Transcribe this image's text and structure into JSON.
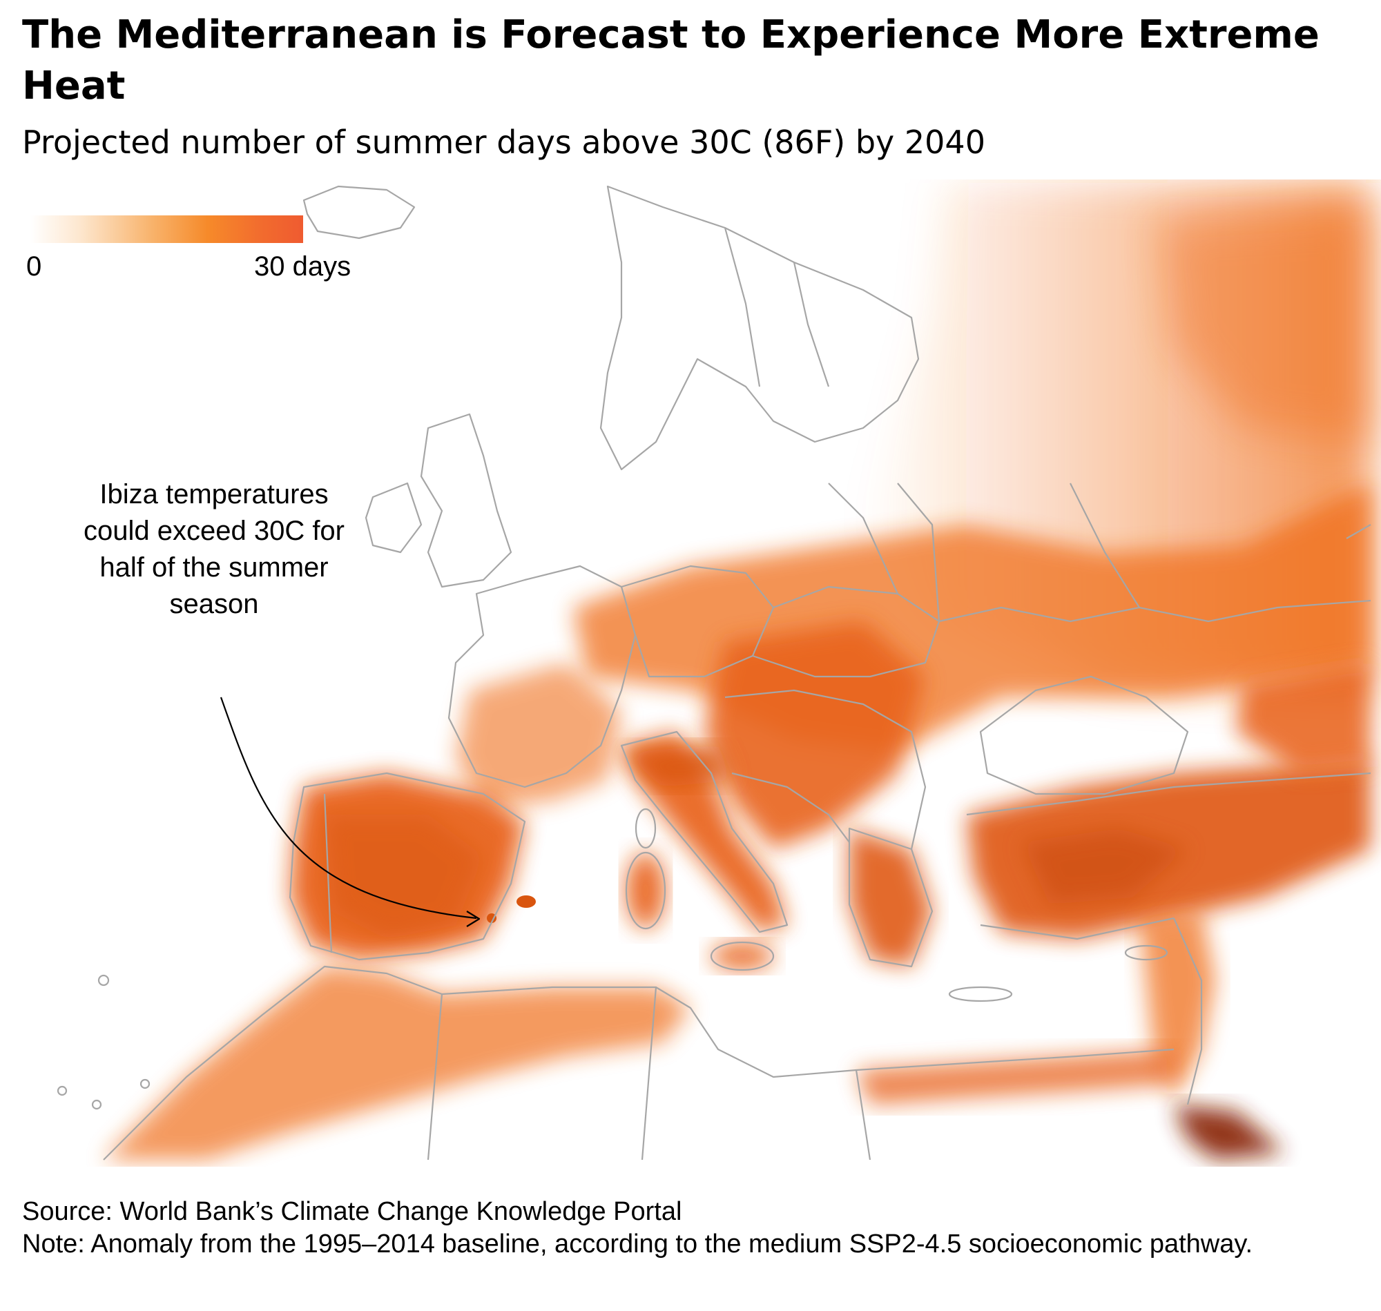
{
  "title": "The Mediterranean is Forecast to Experience More Extreme Heat",
  "subtitle": "Projected number of summer days above 30C (86F) by 2040",
  "legend": {
    "min_label": "0",
    "max_label": "30 days",
    "colors": [
      "#ffffff",
      "#fde7cf",
      "#f8b26a",
      "#f68a2a",
      "#f26b2e",
      "#ef5b30"
    ]
  },
  "map": {
    "region": "Europe, North Africa and the Middle East",
    "border_color": "#a6a6a6",
    "heat_color": "#f0701f",
    "extreme_color": "#8c2a08"
  },
  "annotation": {
    "text": "Ibiza temperatures could exceed 30C for half of the summer season"
  },
  "footer": {
    "source": "Source: World Bank’s Climate Change Knowledge Portal",
    "note": "Note: Anomaly from the 1995–2014 baseline, according to the medium SSP2-4.5 socioeconomic pathway."
  }
}
